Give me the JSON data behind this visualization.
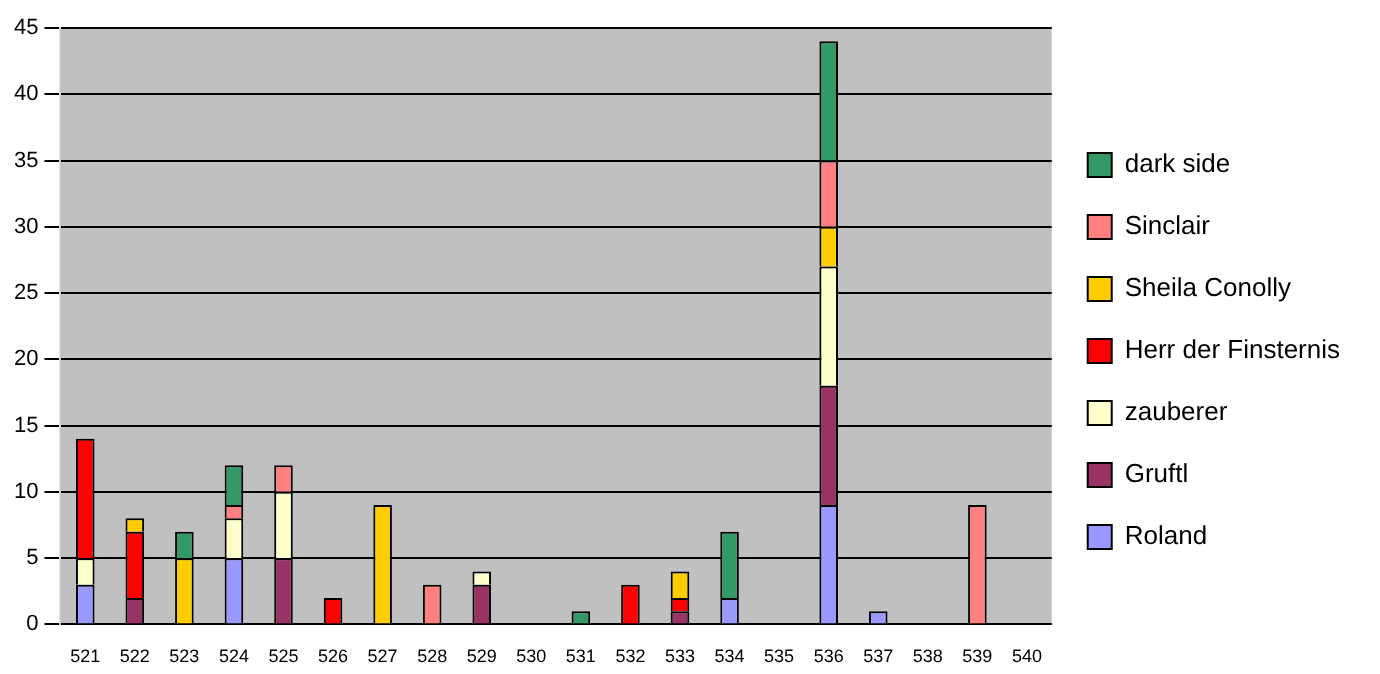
{
  "chart_data": {
    "type": "bar",
    "stacked": true,
    "categories": [
      "521",
      "522",
      "523",
      "524",
      "525",
      "526",
      "527",
      "528",
      "529",
      "530",
      "531",
      "532",
      "533",
      "534",
      "535",
      "536",
      "537",
      "538",
      "539",
      "540"
    ],
    "series": [
      {
        "name": "Roland",
        "color": "#9999ff",
        "values": [
          3,
          null,
          null,
          5,
          null,
          null,
          null,
          null,
          null,
          null,
          null,
          null,
          null,
          2,
          null,
          9,
          1,
          null,
          null,
          null
        ]
      },
      {
        "name": "Gruftl",
        "color": "#993366",
        "values": [
          null,
          2,
          null,
          null,
          5,
          null,
          null,
          null,
          3,
          null,
          null,
          null,
          1,
          null,
          null,
          9,
          null,
          null,
          null,
          null
        ]
      },
      {
        "name": "zauberer",
        "color": "#ffffcc",
        "values": [
          2,
          null,
          null,
          3,
          5,
          null,
          null,
          null,
          1,
          null,
          null,
          null,
          null,
          null,
          null,
          9,
          null,
          null,
          null,
          null
        ]
      },
      {
        "name": "Herr der Finsternis",
        "color": "#ff0000",
        "values": [
          9,
          5,
          null,
          null,
          null,
          2,
          null,
          null,
          null,
          null,
          null,
          3,
          1,
          null,
          null,
          null,
          null,
          null,
          null,
          null
        ]
      },
      {
        "name": "Sheila Conolly",
        "color": "#ffcc00",
        "values": [
          null,
          1,
          5,
          null,
          null,
          null,
          9,
          null,
          null,
          null,
          null,
          null,
          2,
          null,
          null,
          3,
          null,
          null,
          null,
          null
        ]
      },
      {
        "name": "Sinclair",
        "color": "#ff8080",
        "values": [
          null,
          null,
          null,
          1,
          2,
          null,
          null,
          3,
          null,
          null,
          null,
          null,
          null,
          null,
          null,
          5,
          null,
          null,
          9,
          null
        ]
      },
      {
        "name": "dark side",
        "color": "#339966",
        "values": [
          null,
          null,
          2,
          3,
          null,
          null,
          null,
          null,
          null,
          null,
          1,
          null,
          null,
          5,
          null,
          9,
          null,
          null,
          null,
          null
        ]
      }
    ],
    "ylim": [
      0,
      45
    ],
    "yticks": [
      0,
      5,
      10,
      15,
      20,
      25,
      30,
      35,
      40,
      45
    ],
    "grid": "y",
    "legend": "right"
  }
}
